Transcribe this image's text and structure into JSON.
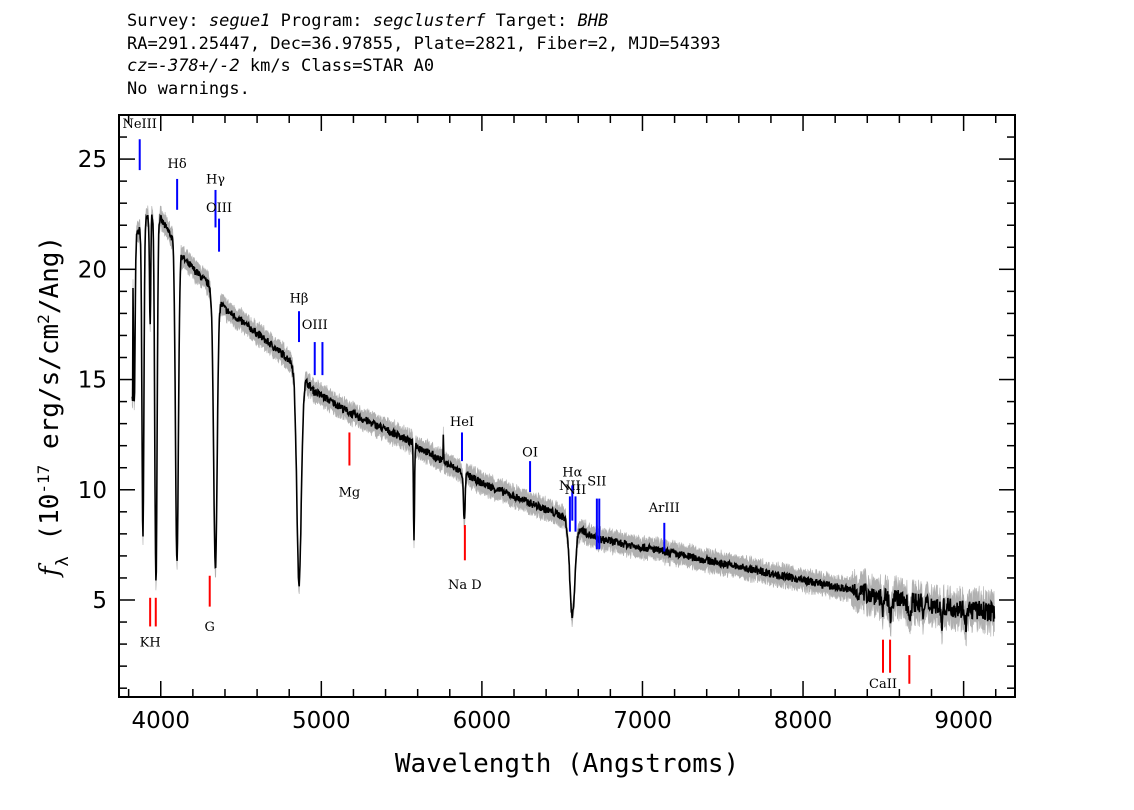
{
  "header": {
    "survey_label": "Survey:",
    "survey": "segue1",
    "program_label": "Program:",
    "program": "segclusterf",
    "target_label": "Target:",
    "target": "BHB",
    "line2": "RA=291.25447, Dec=36.97855, Plate=2821, Fiber=2, MJD=54393",
    "cz_prefix": "cz=",
    "cz_value": "-378+/-2",
    "cz_suffix": " km/s Class=STAR A0",
    "line4": "No warnings."
  },
  "chart_data": {
    "type": "line",
    "xlabel": "Wavelength (Angstroms)",
    "ylabel_parts": [
      "f",
      "λ",
      " (10",
      "-17",
      " erg/s/cm",
      "2",
      "/Ang)"
    ],
    "xlim": [
      3740,
      9320
    ],
    "ylim": [
      0.6,
      27.0
    ],
    "x_ticks": [
      4000,
      5000,
      6000,
      7000,
      8000,
      9000
    ],
    "y_ticks": [
      5,
      10,
      15,
      20,
      25
    ],
    "grid": false,
    "continuum": [
      [
        3830,
        21.3
      ],
      [
        3900,
        22.2
      ],
      [
        3960,
        22.7
      ],
      [
        4050,
        21.7
      ],
      [
        4150,
        20.4
      ],
      [
        4300,
        19.3
      ],
      [
        4400,
        18.2
      ],
      [
        4600,
        17.1
      ],
      [
        4800,
        15.9
      ],
      [
        4950,
        14.5
      ],
      [
        5200,
        13.4
      ],
      [
        5500,
        12.4
      ],
      [
        5800,
        11.1
      ],
      [
        6000,
        10.3
      ],
      [
        6300,
        9.4
      ],
      [
        6500,
        8.8
      ],
      [
        6700,
        7.8
      ],
      [
        7000,
        7.4
      ],
      [
        7400,
        6.8
      ],
      [
        7800,
        6.2
      ],
      [
        8200,
        5.6
      ],
      [
        8600,
        5.0
      ],
      [
        9000,
        4.6
      ],
      [
        9190,
        4.45
      ]
    ],
    "absorption": [
      {
        "center": 3835,
        "depth": 7.5,
        "width": 5
      },
      {
        "center": 3889,
        "depth": 14.2,
        "width": 6
      },
      {
        "center": 3934,
        "depth": 5.0,
        "width": 4
      },
      {
        "center": 3970,
        "depth": 16.8,
        "width": 7
      },
      {
        "center": 4101,
        "depth": 14.4,
        "width": 9
      },
      {
        "center": 4340,
        "depth": 12.4,
        "width": 11
      },
      {
        "center": 4861,
        "depth": 9.6,
        "width": 14
      },
      {
        "center": 5577,
        "depth": 5.4,
        "width": 3
      },
      {
        "center": 5890,
        "depth": 2.2,
        "width": 5
      },
      {
        "center": 6563,
        "depth": 4.2,
        "width": 16
      },
      {
        "center": 8498,
        "depth": 0.6,
        "width": 7
      },
      {
        "center": 8542,
        "depth": 0.8,
        "width": 7
      },
      {
        "center": 8662,
        "depth": 0.7,
        "width": 7
      },
      {
        "center": 8750,
        "depth": 0.5,
        "width": 6
      },
      {
        "center": 8863,
        "depth": 0.7,
        "width": 7
      },
      {
        "center": 9015,
        "depth": 0.6,
        "width": 7
      }
    ],
    "emission": [
      {
        "center": 5577,
        "height": 1.2,
        "width": 2
      },
      {
        "center": 5760,
        "height": 1.1,
        "width": 2
      }
    ],
    "emission_lines": [
      {
        "label": "NeIII",
        "x": 3869,
        "y0": 24.5,
        "y1": 25.9,
        "label_y": 26.4,
        "color": "#0000ff"
      },
      {
        "label": "Hδ",
        "x": 4102,
        "y0": 22.7,
        "y1": 24.1,
        "label_y": 24.6,
        "color": "#0000ff"
      },
      {
        "label": "Hγ",
        "x": 4341,
        "y0": 21.9,
        "y1": 23.6,
        "label_y": 23.9,
        "color": "#0000ff"
      },
      {
        "label": "OIII",
        "x": 4363,
        "y0": 20.8,
        "y1": 22.3,
        "label_y": 22.6,
        "color": "#0000ff"
      },
      {
        "label": "Hβ",
        "x": 4861,
        "y0": 16.7,
        "y1": 18.1,
        "label_y": 18.5,
        "color": "#0000ff"
      },
      {
        "label": "OIII",
        "x": 4959,
        "y0": 15.2,
        "y1": 16.7,
        "label_y": 17.3,
        "color": "#0000ff"
      },
      {
        "label": "",
        "x": 5007,
        "y0": 15.2,
        "y1": 16.7,
        "label_y": 0,
        "color": "#0000ff"
      },
      {
        "label": "HeI",
        "x": 5876,
        "y0": 11.3,
        "y1": 12.6,
        "label_y": 12.9,
        "color": "#0000ff"
      },
      {
        "label": "OI",
        "x": 6300,
        "y0": 9.9,
        "y1": 11.3,
        "label_y": 11.5,
        "color": "#0000ff"
      },
      {
        "label": "NII",
        "x": 6548,
        "y0": 8.1,
        "y1": 9.7,
        "label_y": 10.0,
        "color": "#0000ff"
      },
      {
        "label": "Hα",
        "x": 6563,
        "y0": 8.6,
        "y1": 10.2,
        "label_y": 10.6,
        "color": "#0000ff"
      },
      {
        "label": "NII",
        "x": 6583,
        "y0": 8.1,
        "y1": 9.7,
        "label_y": 9.8,
        "color": "#0000ff"
      },
      {
        "label": "SII",
        "x": 6716,
        "y0": 7.3,
        "y1": 9.6,
        "label_y": 10.2,
        "color": "#0000ff"
      },
      {
        "label": "",
        "x": 6731,
        "y0": 7.3,
        "y1": 9.6,
        "label_y": 0,
        "color": "#0000ff"
      },
      {
        "label": "ArIII",
        "x": 7136,
        "y0": 7.2,
        "y1": 8.5,
        "label_y": 9.0,
        "color": "#0000ff"
      }
    ],
    "absorption_lines": [
      {
        "label": "KH",
        "x": 3934,
        "y0": 3.8,
        "y1": 5.1,
        "label_y": 2.9,
        "color": "#ff0000"
      },
      {
        "label": "",
        "x": 3969,
        "y0": 3.8,
        "y1": 5.1,
        "label_y": 0,
        "color": "#ff0000"
      },
      {
        "label": "G",
        "x": 4305,
        "y0": 4.7,
        "y1": 6.1,
        "label_y": 3.6,
        "color": "#ff0000"
      },
      {
        "label": "Mg",
        "x": 5175,
        "y0": 11.1,
        "y1": 12.6,
        "label_y": 9.7,
        "color": "#ff0000"
      },
      {
        "label": "Na  D",
        "x": 5894,
        "y0": 6.8,
        "y1": 8.4,
        "label_y": 5.5,
        "color": "#ff0000"
      },
      {
        "label": "CaII",
        "x": 8498,
        "y0": 1.7,
        "y1": 3.2,
        "label_y": 1.0,
        "color": "#ff0000"
      },
      {
        "label": "",
        "x": 8542,
        "y0": 1.7,
        "y1": 3.2,
        "label_y": 0,
        "color": "#ff0000"
      },
      {
        "label": "",
        "x": 8662,
        "y0": 1.2,
        "y1": 2.5,
        "label_y": 0,
        "color": "#ff0000"
      }
    ],
    "colors": {
      "spectrum": "#000000",
      "error": "#b0b0b0",
      "emission": "#0000ff",
      "absorption": "#ff0000"
    }
  }
}
